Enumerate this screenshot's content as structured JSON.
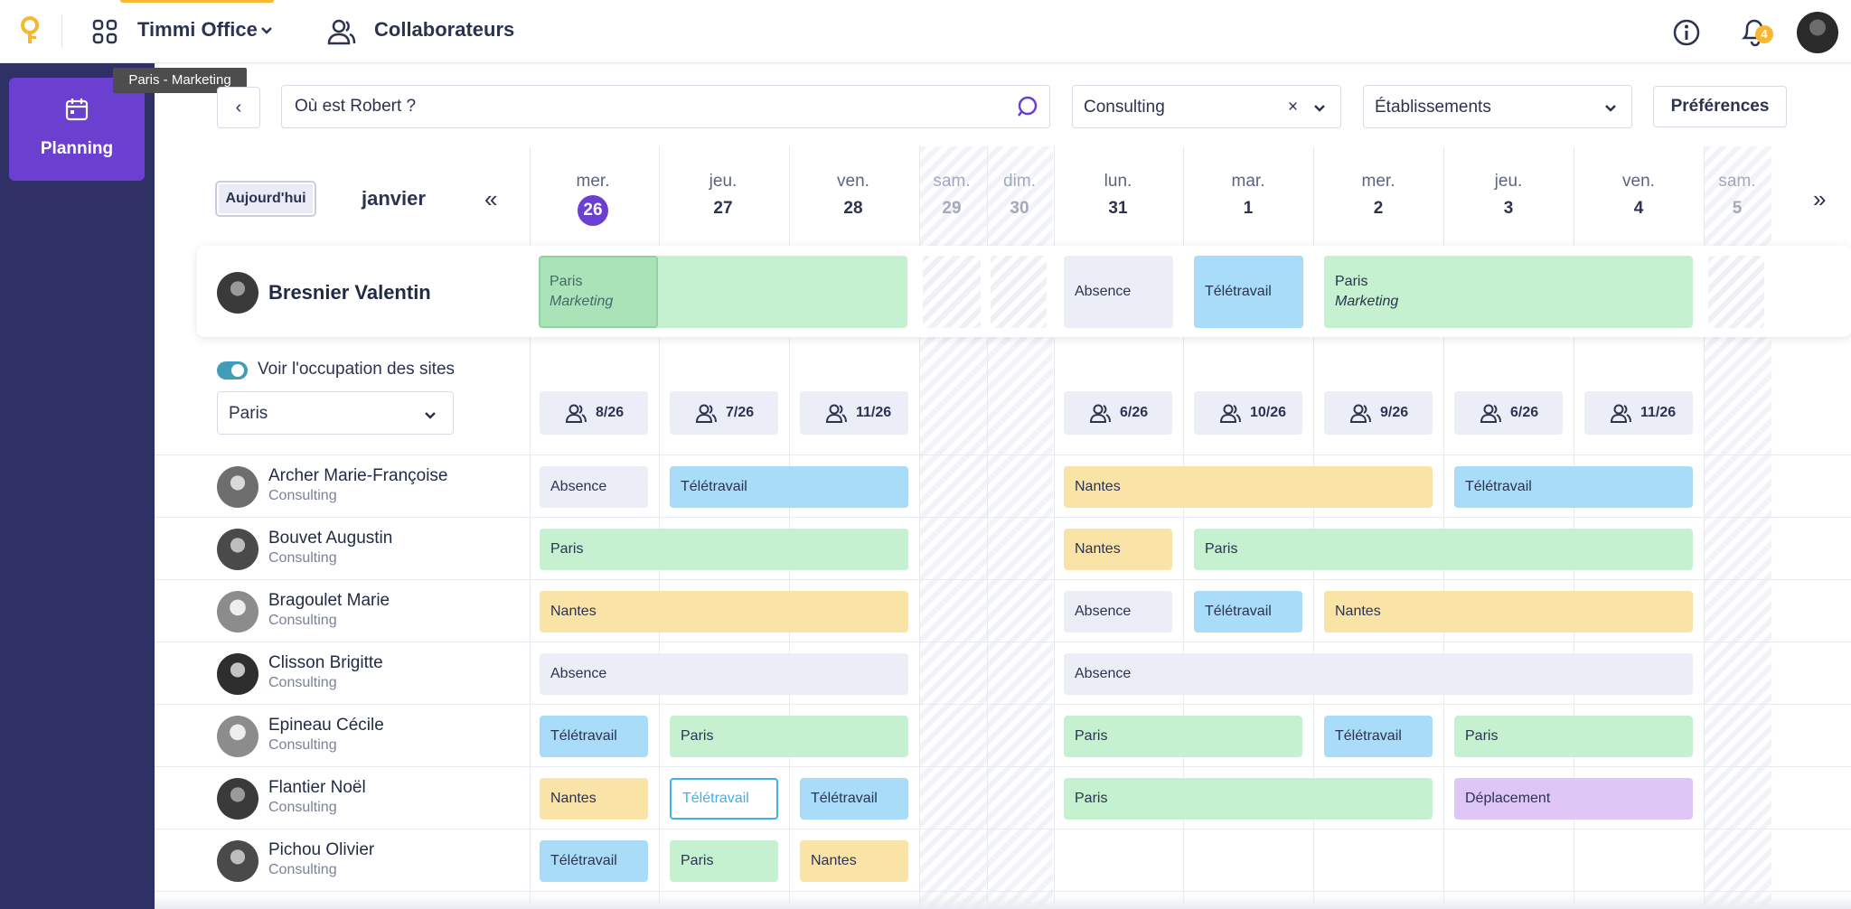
{
  "topbar": {
    "app_name": "Timmi Office",
    "collab_label": "Collaborateurs",
    "notif_count": "4"
  },
  "sidebar": {
    "planning_label": "Planning",
    "tooltip": "Paris - Marketing"
  },
  "filters": {
    "search_value": "Où est Robert ?",
    "team_value": "Consulting",
    "team_clear": "×",
    "establishments_value": "Établissements",
    "prefs_label": "Préférences",
    "prev": "‹"
  },
  "calendar": {
    "today_label": "Aujourd'hui",
    "month": "janvier",
    "prev_week": "«",
    "next_week": "»",
    "days": [
      {
        "name": "mer.",
        "num": "26"
      },
      {
        "name": "jeu.",
        "num": "27"
      },
      {
        "name": "ven.",
        "num": "28"
      },
      {
        "name": "sam.",
        "num": "29"
      },
      {
        "name": "dim.",
        "num": "30"
      },
      {
        "name": "lun.",
        "num": "31"
      },
      {
        "name": "mar.",
        "num": "1"
      },
      {
        "name": "mer.",
        "num": "2"
      },
      {
        "name": "jeu.",
        "num": "3"
      },
      {
        "name": "ven.",
        "num": "4"
      },
      {
        "name": "sam.",
        "num": "5"
      }
    ]
  },
  "me": {
    "name": "Bresnier Valentin",
    "b1_line1": "Paris",
    "b1_line2": "Marketing",
    "b2": "Absence",
    "b3": "Télétravail",
    "b4_line1": "Paris",
    "b4_line2": "Marketing"
  },
  "occupancy": {
    "toggle_label": "Voir l'occupation des sites",
    "site": "Paris",
    "counts": [
      "8/26",
      "7/26",
      "11/26",
      "6/26",
      "10/26",
      "9/26",
      "6/26",
      "11/26"
    ]
  },
  "people": [
    {
      "name": "Archer Marie-Françoise",
      "team": "Consulting",
      "bookings": [
        "Absence",
        "Télétravail",
        "Nantes",
        "Télétravail"
      ]
    },
    {
      "name": "Bouvet Augustin",
      "team": "Consulting",
      "bookings": [
        "Paris",
        "Nantes",
        "Paris"
      ]
    },
    {
      "name": "Bragoulet Marie",
      "team": "Consulting",
      "bookings": [
        "Nantes",
        "Absence",
        "Télétravail",
        "Nantes"
      ]
    },
    {
      "name": "Clisson Brigitte",
      "team": "Consulting",
      "bookings": [
        "Absence",
        "Absence"
      ]
    },
    {
      "name": "Epineau Cécile",
      "team": "Consulting",
      "bookings": [
        "Télétravail",
        "Paris",
        "Paris",
        "Télétravail",
        "Paris"
      ]
    },
    {
      "name": "Flantier Noël",
      "team": "Consulting",
      "bookings": [
        "Nantes",
        "Télétravail",
        "Télétravail",
        "Paris",
        "Déplacement"
      ]
    },
    {
      "name": "Pichou Olivier",
      "team": "Consulting",
      "bookings": [
        "Télétravail",
        "Paris",
        "Nantes"
      ]
    }
  ]
}
